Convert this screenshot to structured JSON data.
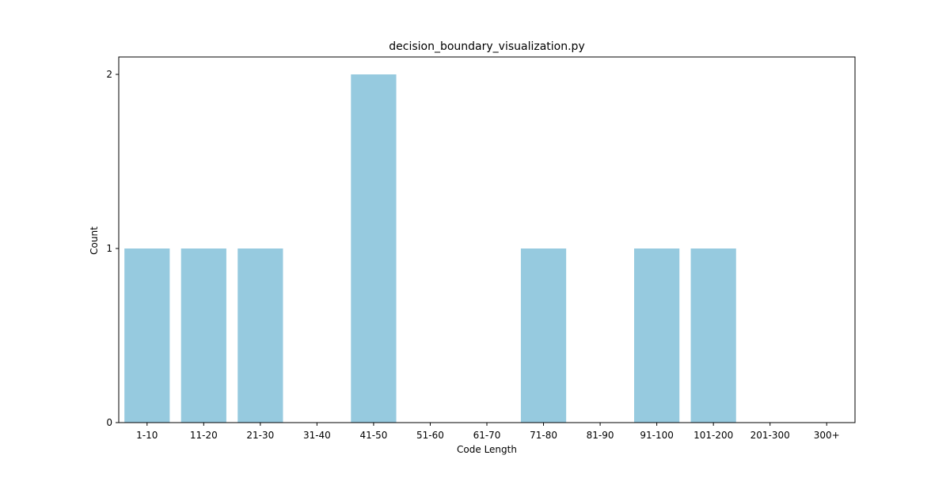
{
  "chart_data": {
    "type": "bar",
    "title": "decision_boundary_visualization.py",
    "xlabel": "Code Length",
    "ylabel": "Count",
    "categories": [
      "1-10",
      "11-20",
      "21-30",
      "31-40",
      "41-50",
      "51-60",
      "61-70",
      "71-80",
      "81-90",
      "91-100",
      "101-200",
      "201-300",
      "300+"
    ],
    "values": [
      1,
      1,
      1,
      0,
      2,
      0,
      0,
      1,
      0,
      1,
      1,
      0,
      0
    ],
    "ylim": [
      0,
      2.1
    ],
    "yticks": [
      0,
      1,
      2
    ],
    "grid": false,
    "legend": "none",
    "bar_color": "#96cadf"
  }
}
